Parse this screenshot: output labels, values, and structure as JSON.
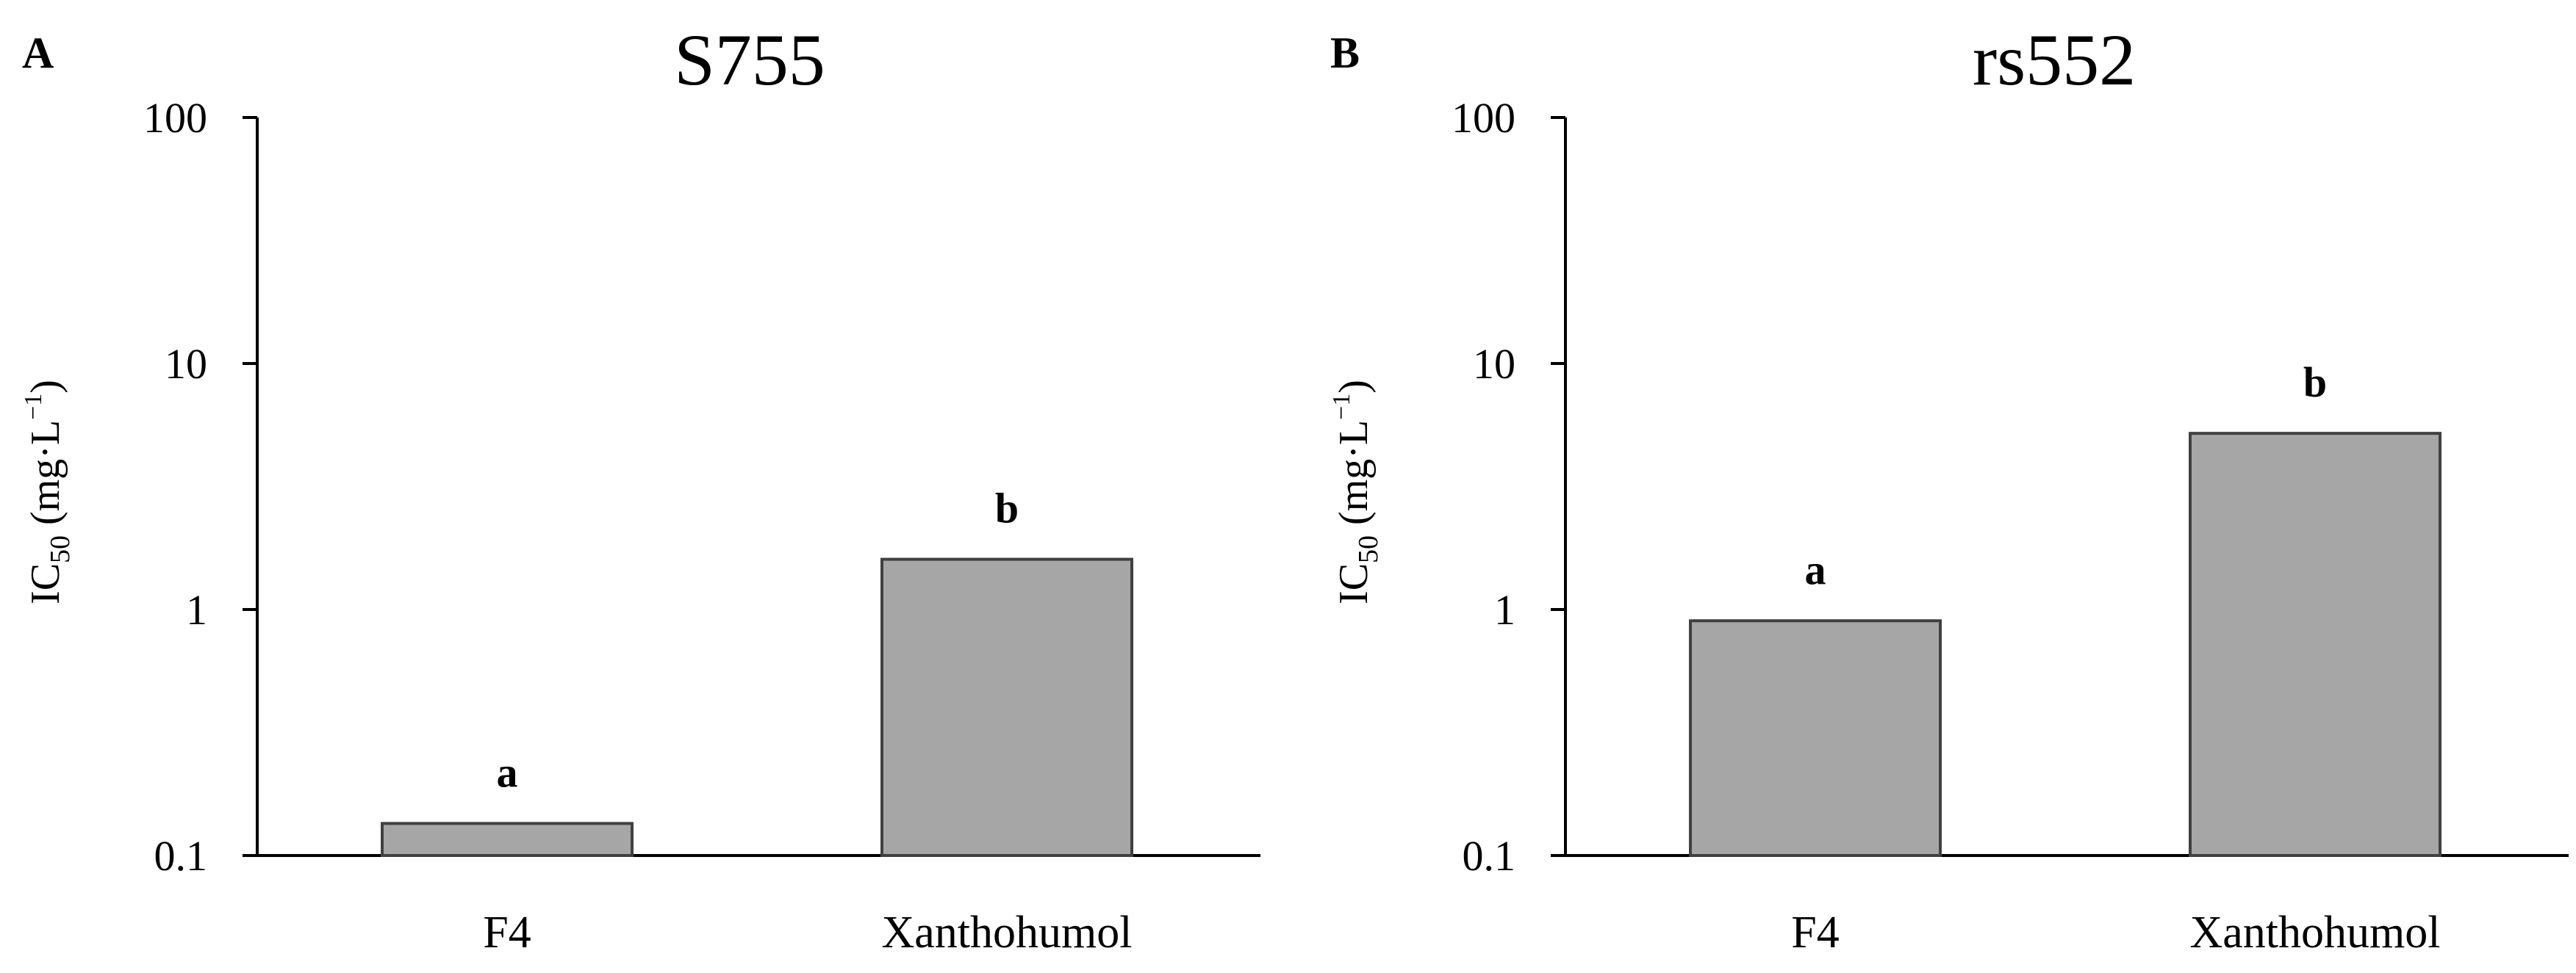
{
  "chart_data": [
    {
      "type": "bar",
      "panel": "A",
      "title": "S755",
      "ylabel_main": "IC",
      "ylabel_sub": "50",
      "ylabel_unit": " (mg·L",
      "ylabel_sup": "−1",
      "ylabel_close": ")",
      "yscale": "log",
      "ylim": [
        0.1,
        100
      ],
      "yticks": [
        "0.1",
        "1",
        "10",
        "100"
      ],
      "ytick_values": [
        0.1,
        1,
        10,
        100
      ],
      "categories": [
        "F4",
        "Xanthohumol"
      ],
      "values": [
        0.135,
        1.6
      ],
      "significance": [
        "a",
        "b"
      ],
      "bar_color": "#a6a6a6",
      "bar_edge_color": "#404040"
    },
    {
      "type": "bar",
      "panel": "B",
      "title": "rs552",
      "ylabel_main": "IC",
      "ylabel_sub": "50",
      "ylabel_unit": " (mg·L",
      "ylabel_sup": "−1",
      "ylabel_close": ")",
      "yscale": "log",
      "ylim": [
        0.1,
        100
      ],
      "yticks": [
        "0.1",
        "1",
        "10",
        "100"
      ],
      "ytick_values": [
        0.1,
        1,
        10,
        100
      ],
      "categories": [
        "F4",
        "Xanthohumol"
      ],
      "values": [
        0.9,
        5.2
      ],
      "significance": [
        "a",
        "b"
      ],
      "bar_color": "#a6a6a6",
      "bar_edge_color": "#404040"
    }
  ]
}
